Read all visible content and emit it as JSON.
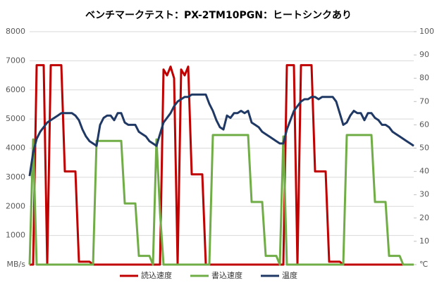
{
  "chart_data": {
    "type": "line",
    "title": "ベンチマークテスト：PX-2TM10PGN：ヒートシンクあり",
    "ylim": [
      0,
      8000
    ],
    "yticks": [
      {
        "value": 0,
        "label": "MB/s"
      },
      1000,
      2000,
      3000,
      4000,
      5000,
      6000,
      7000,
      8000
    ],
    "y2lim": [
      0,
      100
    ],
    "y2ticks": [
      {
        "value": 0,
        "label": "℃"
      },
      10,
      20,
      30,
      40,
      50,
      60,
      70,
      80,
      90,
      100
    ],
    "grid": true,
    "legend": "bottom",
    "series": [
      {
        "name": "読込速度",
        "color": "#c00000",
        "values": [
          0,
          0,
          6850,
          6850,
          6850,
          0,
          6850,
          6850,
          6850,
          6850,
          3200,
          3200,
          3200,
          3200,
          100,
          100,
          100,
          100,
          0,
          0,
          0,
          0,
          0,
          0,
          0,
          0,
          0,
          0,
          0,
          0,
          0,
          0,
          0,
          0,
          0,
          0,
          0,
          0,
          6700,
          6500,
          6800,
          6400,
          0,
          6700,
          6500,
          6800,
          3100,
          3100,
          3100,
          3100,
          0,
          0,
          0,
          0,
          0,
          0,
          0,
          0,
          0,
          0,
          0,
          0,
          0,
          0,
          0,
          0,
          0,
          0,
          0,
          0,
          0,
          0,
          0,
          6850,
          6850,
          6850,
          0,
          6850,
          6850,
          6850,
          6850,
          3200,
          3200,
          3200,
          3200,
          100,
          100,
          100,
          100,
          0,
          0,
          0,
          0,
          0,
          0,
          0,
          0,
          0,
          0,
          0,
          0,
          0,
          0,
          0,
          0,
          0,
          0,
          0,
          0,
          0
        ]
      },
      {
        "name": "書込速度",
        "color": "#70ad47",
        "values": [
          0,
          4300,
          0,
          0,
          0,
          0,
          0,
          0,
          0,
          0,
          0,
          0,
          0,
          0,
          0,
          0,
          0,
          0,
          0,
          4250,
          4250,
          4250,
          4250,
          4250,
          4250,
          4250,
          4250,
          2100,
          2100,
          2100,
          2100,
          300,
          300,
          300,
          300,
          0,
          4300,
          1800,
          0,
          0,
          0,
          0,
          0,
          0,
          0,
          0,
          0,
          0,
          0,
          0,
          0,
          0,
          4450,
          4450,
          4450,
          4450,
          4450,
          4450,
          4450,
          4450,
          4450,
          4450,
          4450,
          2150,
          2150,
          2150,
          2150,
          300,
          300,
          300,
          300,
          0,
          4400,
          0,
          0,
          0,
          0,
          0,
          0,
          0,
          0,
          0,
          0,
          0,
          0,
          0,
          0,
          0,
          0,
          0,
          4450,
          4450,
          4450,
          4450,
          4450,
          4450,
          4450,
          4450,
          2150,
          2150,
          2150,
          2150,
          300,
          300,
          300,
          300,
          0,
          0,
          0,
          0
        ]
      },
      {
        "name": "温度",
        "color": "#1f3864",
        "axis": "y2",
        "values": [
          38,
          48,
          54,
          57,
          59,
          61,
          62,
          63,
          64,
          65,
          65,
          65,
          65,
          64,
          62,
          58,
          55,
          53,
          52,
          51,
          60,
          63,
          64,
          64,
          62,
          65,
          65,
          61,
          60,
          60,
          60,
          57,
          56,
          55,
          53,
          52,
          51,
          56,
          61,
          63,
          65,
          68,
          70,
          71,
          72,
          72,
          73,
          73,
          73,
          73,
          73,
          69,
          66,
          62,
          59,
          58,
          64,
          63,
          65,
          65,
          66,
          65,
          66,
          61,
          60,
          59,
          57,
          56,
          55,
          54,
          53,
          52,
          52,
          58,
          62,
          66,
          68,
          70,
          71,
          71,
          72,
          72,
          71,
          72,
          72,
          72,
          72,
          70,
          65,
          60,
          61,
          64,
          66,
          65,
          65,
          62,
          65,
          65,
          63,
          62,
          60,
          60,
          59,
          57,
          56,
          55,
          54,
          53,
          52,
          51
        ]
      }
    ]
  }
}
